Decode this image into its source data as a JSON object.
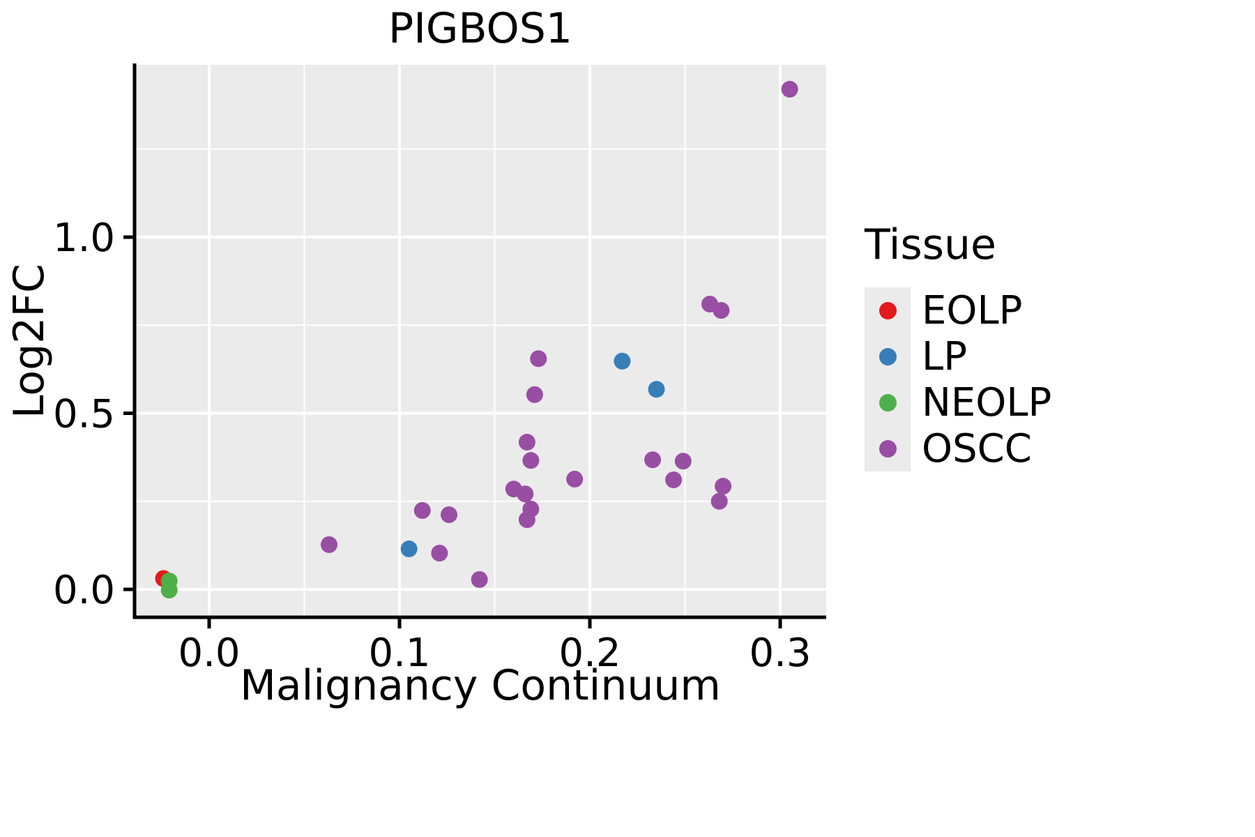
{
  "chart_data": {
    "type": "scatter",
    "title": "PIGBOS1",
    "xlabel": "Malignancy Continuum",
    "ylabel": "Log2FC",
    "legend_title": "Tissue",
    "xlim": [
      -0.039,
      0.324
    ],
    "ylim": [
      -0.079,
      1.485
    ],
    "x_ticks": [
      0.0,
      0.1,
      0.2,
      0.3
    ],
    "x_tick_labels": [
      "0.0",
      "0.1",
      "0.2",
      "0.3"
    ],
    "x_minor_ticks": [
      0.05,
      0.15,
      0.25
    ],
    "y_ticks": [
      0.0,
      0.5,
      1.0
    ],
    "y_tick_labels": [
      "0.0",
      "0.5",
      "1.0"
    ],
    "y_minor_ticks": [
      0.25,
      0.75,
      1.25
    ],
    "grid": true,
    "panel_color": "#EBEBEB",
    "grid_color": "#FFFFFF",
    "legend_position": "right",
    "series": [
      {
        "name": "EOLP",
        "color": "#E41A1C",
        "points": [
          [
            -0.024,
            0.031
          ]
        ]
      },
      {
        "name": "LP",
        "color": "#377EB8",
        "points": [
          [
            0.105,
            0.115
          ],
          [
            0.217,
            0.648
          ],
          [
            0.235,
            0.568
          ]
        ]
      },
      {
        "name": "NEOLP",
        "color": "#4DAF4A",
        "points": [
          [
            -0.021,
            0.024
          ],
          [
            -0.021,
            -0.002
          ]
        ]
      },
      {
        "name": "OSCC",
        "color": "#984EA3",
        "points": [
          [
            0.305,
            1.42
          ],
          [
            0.263,
            0.81
          ],
          [
            0.269,
            0.792
          ],
          [
            0.173,
            0.655
          ],
          [
            0.171,
            0.553
          ],
          [
            0.167,
            0.418
          ],
          [
            0.169,
            0.366
          ],
          [
            0.233,
            0.368
          ],
          [
            0.249,
            0.364
          ],
          [
            0.244,
            0.311
          ],
          [
            0.192,
            0.313
          ],
          [
            0.27,
            0.293
          ],
          [
            0.268,
            0.25
          ],
          [
            0.16,
            0.285
          ],
          [
            0.166,
            0.271
          ],
          [
            0.169,
            0.228
          ],
          [
            0.167,
            0.198
          ],
          [
            0.112,
            0.224
          ],
          [
            0.126,
            0.212
          ],
          [
            0.063,
            0.127
          ],
          [
            0.121,
            0.103
          ],
          [
            0.142,
            0.028
          ]
        ]
      }
    ]
  }
}
